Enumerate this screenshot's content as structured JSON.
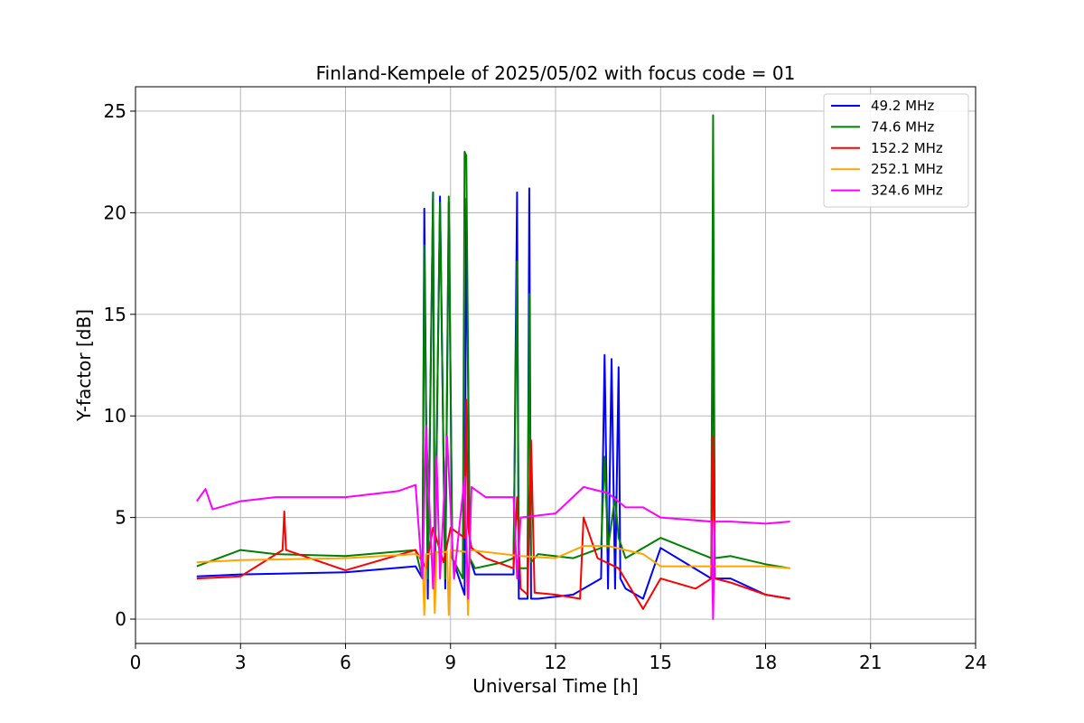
{
  "chart_data": {
    "type": "line",
    "title": "Finland-Kempele of 2025/05/02 with focus code = 01",
    "xlabel": "Universal Time [h]",
    "ylabel": "Y-factor [dB]",
    "xlim": [
      0,
      24
    ],
    "ylim": [
      -1.2,
      26.2
    ],
    "xticks": [
      0,
      3,
      6,
      9,
      12,
      15,
      18,
      21,
      24
    ],
    "yticks": [
      0,
      5,
      10,
      15,
      20,
      25
    ],
    "grid": true,
    "legend_position": "top-right",
    "series": [
      {
        "name": " 49.2 MHz",
        "color": "#0000ff",
        "x": [
          1.75,
          3,
          6,
          8.0,
          8.2,
          8.25,
          8.35,
          8.5,
          8.55,
          8.7,
          8.85,
          8.95,
          9.05,
          9.4,
          9.45,
          9.55,
          9.7,
          10.8,
          10.9,
          10.95,
          11.2,
          11.25,
          11.3,
          11.5,
          12.5,
          13.3,
          13.4,
          13.5,
          13.6,
          13.7,
          13.8,
          13.85,
          14.0,
          14.5,
          15.0,
          16.45,
          16.5,
          16.55,
          17.0,
          18.0,
          18.7
        ],
        "y": [
          2.1,
          2.2,
          2.3,
          2.6,
          2.0,
          20.2,
          1.0,
          21.0,
          1.5,
          20.8,
          1.5,
          20.5,
          3.0,
          1.2,
          20.7,
          3.0,
          2.2,
          2.2,
          21.0,
          1.0,
          1.0,
          21.2,
          1.0,
          1.0,
          1.2,
          2.0,
          13.0,
          1.5,
          12.8,
          1.5,
          12.4,
          2.0,
          1.5,
          1.0,
          3.5,
          2.0,
          18.5,
          2.0,
          2.0,
          1.2,
          1.0
        ]
      },
      {
        "name": " 74.6 MHz",
        "color": "#008000",
        "x": [
          1.75,
          3,
          4,
          6,
          8.0,
          8.2,
          8.25,
          8.35,
          8.5,
          8.55,
          8.7,
          8.85,
          8.95,
          9.05,
          9.35,
          9.4,
          9.45,
          9.55,
          9.7,
          10.5,
          10.8,
          10.9,
          10.95,
          11.2,
          11.25,
          11.3,
          11.5,
          12.5,
          13.3,
          13.4,
          13.5,
          13.7,
          13.8,
          14.0,
          15.0,
          16.45,
          16.5,
          16.55,
          17.0,
          18.0,
          18.7
        ],
        "y": [
          2.6,
          3.4,
          3.2,
          3.1,
          3.4,
          2.0,
          18.4,
          2.0,
          21.0,
          2.0,
          20.5,
          2.0,
          20.8,
          3.0,
          2.0,
          23.0,
          22.8,
          3.0,
          2.5,
          2.8,
          3.0,
          17.6,
          2.5,
          2.5,
          16.0,
          2.8,
          3.2,
          3.0,
          3.5,
          8.0,
          3.5,
          6.0,
          4.0,
          3.0,
          4.0,
          3.0,
          24.8,
          3.0,
          3.1,
          2.7,
          2.5
        ]
      },
      {
        "name": " 152.2 MHz",
        "color": "#ff0000",
        "x": [
          1.75,
          3,
          4.2,
          4.25,
          4.3,
          6,
          8.0,
          8.3,
          8.5,
          8.8,
          9.0,
          9.4,
          9.45,
          9.5,
          9.6,
          10.0,
          10.8,
          10.9,
          11.0,
          11.2,
          11.3,
          11.4,
          12.0,
          12.7,
          12.8,
          13.2,
          13.8,
          14.5,
          15.0,
          16.0,
          16.45,
          16.5,
          16.55,
          17.0,
          18.0,
          18.7
        ],
        "y": [
          2.0,
          2.1,
          3.4,
          5.3,
          3.4,
          2.4,
          3.4,
          2.5,
          4.5,
          2.8,
          4.5,
          4.0,
          10.8,
          4.5,
          3.5,
          3.0,
          2.5,
          6.0,
          1.5,
          1.2,
          8.8,
          1.3,
          1.2,
          1.0,
          5.0,
          3.0,
          2.5,
          0.5,
          2.0,
          1.5,
          2.0,
          9.0,
          2.0,
          1.8,
          1.2,
          1.0
        ]
      },
      {
        "name": " 252.1 MHz",
        "color": "#ffa500",
        "x": [
          1.75,
          3,
          6,
          8.0,
          8.2,
          8.25,
          8.3,
          8.5,
          8.55,
          8.6,
          8.9,
          8.95,
          9.0,
          9.45,
          9.5,
          9.55,
          10,
          11,
          12,
          12.8,
          13.5,
          14.5,
          15,
          16,
          17,
          18,
          18.7
        ],
        "y": [
          2.8,
          2.9,
          3.0,
          3.2,
          3.0,
          0.2,
          3.2,
          3.2,
          0.3,
          3.3,
          3.3,
          0.2,
          3.4,
          3.3,
          0.2,
          3.4,
          3.3,
          3.1,
          3.0,
          3.6,
          3.6,
          3.2,
          2.6,
          2.6,
          2.6,
          2.6,
          2.5
        ]
      },
      {
        "name": " 324.6 MHz",
        "color": "#ff00ff",
        "x": [
          1.75,
          2.0,
          2.2,
          3,
          4,
          6,
          7.5,
          8.0,
          8.2,
          8.3,
          8.5,
          8.6,
          8.7,
          8.9,
          9.1,
          9.4,
          9.5,
          9.6,
          10,
          10.8,
          10.9,
          11,
          12,
          12.8,
          13.5,
          14.0,
          14.5,
          15,
          16.45,
          16.5,
          16.55,
          17,
          18,
          18.7
        ],
        "y": [
          5.8,
          6.4,
          5.4,
          5.8,
          6.0,
          6.0,
          6.3,
          6.6,
          2.0,
          9.5,
          1.5,
          8.0,
          2.0,
          9.0,
          2.0,
          7.0,
          1.0,
          6.5,
          6.0,
          6.0,
          2.0,
          5.0,
          5.2,
          6.5,
          6.2,
          5.5,
          5.5,
          5.0,
          4.8,
          0.0,
          4.8,
          4.8,
          4.7,
          4.8
        ]
      }
    ]
  }
}
